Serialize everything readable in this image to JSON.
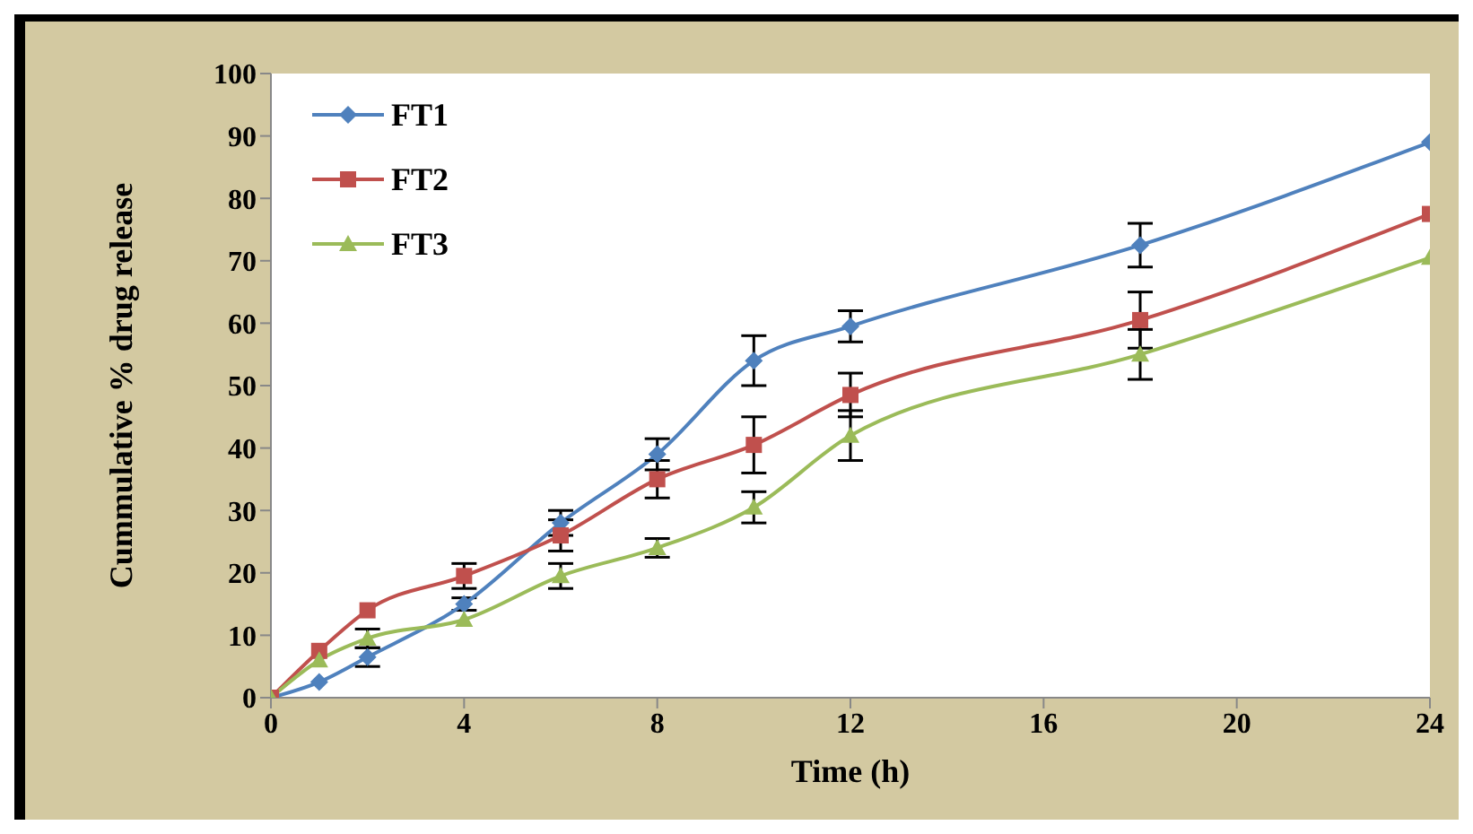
{
  "chart_data": {
    "type": "line",
    "xlabel": "Time (h)",
    "ylabel": "Cummulative % drug release",
    "x": [
      0,
      1,
      2,
      4,
      6,
      8,
      10,
      12,
      18,
      24
    ],
    "series": [
      {
        "name": "FT1",
        "color": "#4f81bd",
        "marker": "diamond",
        "values": [
          0,
          2.5,
          6.5,
          15,
          28,
          39,
          54,
          59.5,
          72.5,
          89
        ],
        "errors": [
          null,
          null,
          1.5,
          1,
          2,
          2.5,
          4,
          2.5,
          3.5,
          null
        ]
      },
      {
        "name": "FT2",
        "color": "#c0504d",
        "marker": "square",
        "values": [
          0,
          7.5,
          14,
          19.5,
          26,
          35,
          40.5,
          48.5,
          60.5,
          77.5
        ],
        "errors": [
          null,
          null,
          null,
          2,
          2.5,
          3,
          4.5,
          3.5,
          4.5,
          null
        ]
      },
      {
        "name": "FT3",
        "color": "#9bbb59",
        "marker": "triangle",
        "values": [
          0,
          6,
          9.5,
          12.5,
          19.5,
          24,
          30.5,
          42,
          55,
          70.5
        ],
        "errors": [
          null,
          null,
          1.5,
          null,
          2,
          1.5,
          2.5,
          4,
          4,
          null
        ]
      }
    ],
    "xlim": [
      0,
      24
    ],
    "xticks": [
      0,
      4,
      8,
      12,
      16,
      20,
      24
    ],
    "ylim": [
      0,
      100
    ],
    "yticks": [
      0,
      10,
      20,
      30,
      40,
      50,
      60,
      70,
      80,
      90,
      100
    ],
    "grid": false,
    "legend": "top left",
    "line_style": "solid"
  }
}
